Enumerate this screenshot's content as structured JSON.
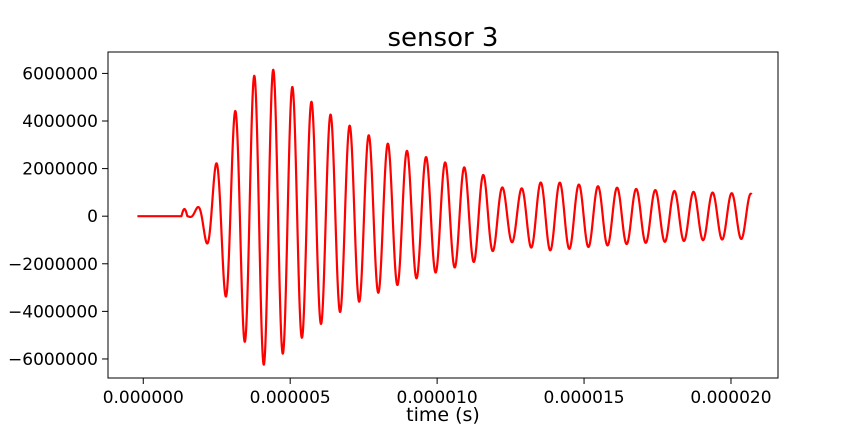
{
  "chart_data": {
    "type": "line",
    "title": "sensor 3",
    "xlabel": "time (s)",
    "ylabel": "",
    "xlim": [
      -1.2e-06,
      2.16e-05
    ],
    "ylim": [
      -6800000,
      6900000
    ],
    "xticks": [
      0.0,
      5e-06,
      1e-05,
      1.5e-05,
      2e-05
    ],
    "xtick_labels": [
      "0.000000",
      "0.000005",
      "0.000010",
      "0.000015",
      "0.000020"
    ],
    "yticks": [
      -6000000,
      -4000000,
      -2000000,
      0,
      2000000,
      4000000,
      6000000
    ],
    "ytick_labels": [
      "−6000000",
      "−4000000",
      "−2000000",
      "0",
      "2000000",
      "4000000",
      "6000000"
    ],
    "grid": false,
    "series": [
      {
        "color": "#ff0000",
        "x_start": -2e-07,
        "x_end": 2.07e-05,
        "onset": 1.5e-06,
        "peak_time": 4.3e-06,
        "peak_amplitude": 6300000,
        "min_amplitude": 800000,
        "period": 6.5e-07
      }
    ]
  }
}
